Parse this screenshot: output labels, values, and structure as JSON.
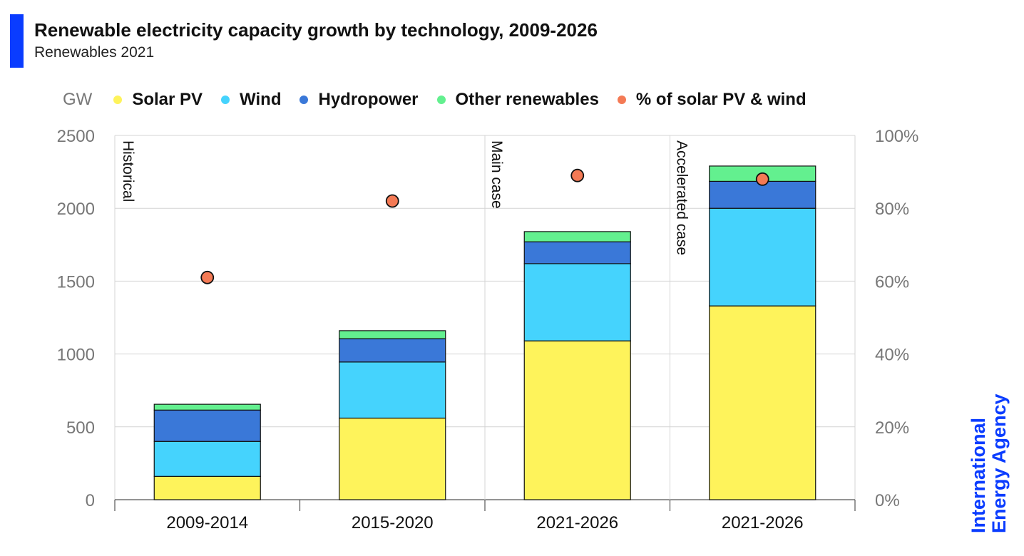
{
  "title": "Renewable electricity capacity growth by technology, 2009-2026",
  "subtitle": "Renewables 2021",
  "legend": {
    "unit": "GW",
    "items": [
      {
        "label": "Solar PV",
        "color": "#fef35b",
        "icon": "solar-pv-dot"
      },
      {
        "label": "Wind",
        "color": "#45d3fd",
        "icon": "wind-dot"
      },
      {
        "label": "Hydropower",
        "color": "#3a78d8",
        "icon": "hydropower-dot"
      },
      {
        "label": "Other renewables",
        "color": "#63f08f",
        "icon": "other-renewables-dot"
      },
      {
        "label": "% of solar PV & wind",
        "color": "#f47a55",
        "icon": "share-dot"
      }
    ]
  },
  "logo": {
    "line1": "International",
    "line2": "Energy Agency"
  },
  "chart_data": {
    "type": "bar",
    "stacked": true,
    "categories": [
      "2009-2014",
      "2015-2020",
      "2021-2026",
      "2021-2026"
    ],
    "series": [
      {
        "name": "Solar PV",
        "color": "#fef35b",
        "values": [
          160,
          560,
          1090,
          1330
        ]
      },
      {
        "name": "Wind",
        "color": "#45d3fd",
        "values": [
          240,
          385,
          530,
          670
        ]
      },
      {
        "name": "Hydropower",
        "color": "#3a78d8",
        "values": [
          215,
          160,
          150,
          185
        ]
      },
      {
        "name": "Other renewables",
        "color": "#63f08f",
        "values": [
          40,
          55,
          70,
          105
        ]
      }
    ],
    "secondary_series": {
      "name": "% of solar PV & wind",
      "type": "scatter",
      "color": "#f47a55",
      "values": [
        61,
        82,
        89,
        88
      ]
    },
    "ylim": [
      0,
      2500
    ],
    "yticks": [
      "0",
      "500",
      "1000",
      "1500",
      "2000",
      "2500"
    ],
    "y2lim": [
      0,
      100
    ],
    "y2ticks": [
      "0%",
      "20%",
      "40%",
      "60%",
      "80%",
      "100%"
    ],
    "section_labels": [
      "Historical",
      "Main case",
      "Accelerated case"
    ],
    "grid": true,
    "legend_position": "top"
  }
}
